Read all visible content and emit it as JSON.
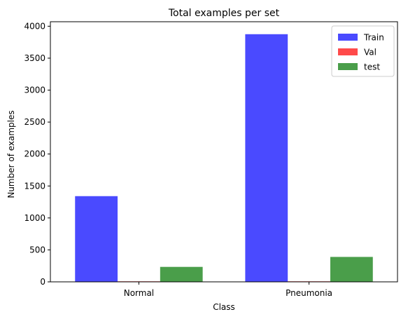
{
  "chart_data": {
    "type": "bar",
    "title": "Total examples per set",
    "xlabel": "Class",
    "ylabel": "Number of examples",
    "categories": [
      "Normal",
      "Pneumonia"
    ],
    "series": [
      {
        "name": "Train",
        "values": [
          1341,
          3875
        ],
        "color": "#4a4aff"
      },
      {
        "name": "Val",
        "values": [
          8,
          8
        ],
        "color": "#ff4a4a"
      },
      {
        "name": "test",
        "values": [
          234,
          390
        ],
        "color": "#4a9e4a"
      }
    ],
    "ylim": [
      0,
      4070
    ],
    "yticks": [
      0,
      500,
      1000,
      1500,
      2000,
      2500,
      3000,
      3500,
      4000
    ],
    "grid": false,
    "legend": "top-right"
  }
}
